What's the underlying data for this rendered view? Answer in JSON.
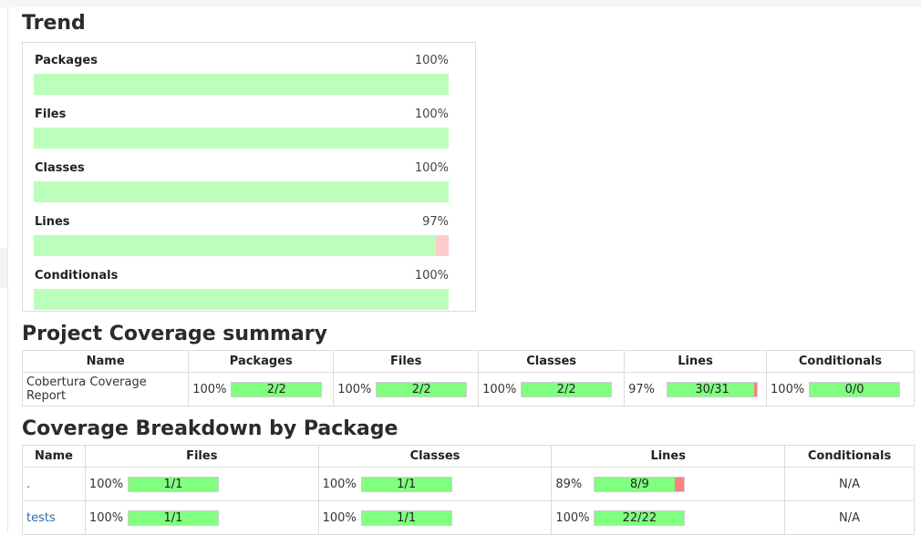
{
  "trend": {
    "title": "Trend",
    "items": [
      {
        "name": "Packages",
        "pct_label": "100%",
        "pct": 100
      },
      {
        "name": "Files",
        "pct_label": "100%",
        "pct": 100
      },
      {
        "name": "Classes",
        "pct_label": "100%",
        "pct": 100
      },
      {
        "name": "Lines",
        "pct_label": "97%",
        "pct": 97
      },
      {
        "name": "Conditionals",
        "pct_label": "100%",
        "pct": 100
      }
    ]
  },
  "summary": {
    "title": "Project Coverage summary",
    "headers": [
      "Name",
      "Packages",
      "Files",
      "Classes",
      "Lines",
      "Conditionals"
    ],
    "rows": [
      {
        "name": "Cobertura Coverage Report",
        "cells": [
          {
            "pct_label": "100%",
            "bar": "2/2",
            "fraction": 1.0
          },
          {
            "pct_label": "100%",
            "bar": "2/2",
            "fraction": 1.0
          },
          {
            "pct_label": "100%",
            "bar": "2/2",
            "fraction": 1.0
          },
          {
            "pct_label": "97%",
            "bar": "30/31",
            "fraction": 0.97
          },
          {
            "pct_label": "100%",
            "bar": "0/0",
            "fraction": 1.0
          }
        ]
      }
    ]
  },
  "breakdown": {
    "title": "Coverage Breakdown by Package",
    "headers": [
      "Name",
      "Files",
      "Classes",
      "Lines",
      "Conditionals"
    ],
    "rows": [
      {
        "name": ".",
        "cells": [
          {
            "pct_label": "100%",
            "bar": "1/1",
            "fraction": 1.0
          },
          {
            "pct_label": "100%",
            "bar": "1/1",
            "fraction": 1.0
          },
          {
            "pct_label": "89%",
            "bar": "8/9",
            "fraction": 0.89
          }
        ],
        "conditionals": "N/A"
      },
      {
        "name": "tests",
        "cells": [
          {
            "pct_label": "100%",
            "bar": "1/1",
            "fraction": 1.0
          },
          {
            "pct_label": "100%",
            "bar": "1/1",
            "fraction": 1.0
          },
          {
            "pct_label": "100%",
            "bar": "22/22",
            "fraction": 1.0
          }
        ],
        "conditionals": "N/A"
      }
    ]
  },
  "colors": {
    "covered_light": "#bbffbb",
    "uncovered_light": "#ffcccc",
    "covered": "#80ff80",
    "uncovered": "#ff8080",
    "link": "#2a6db0"
  }
}
